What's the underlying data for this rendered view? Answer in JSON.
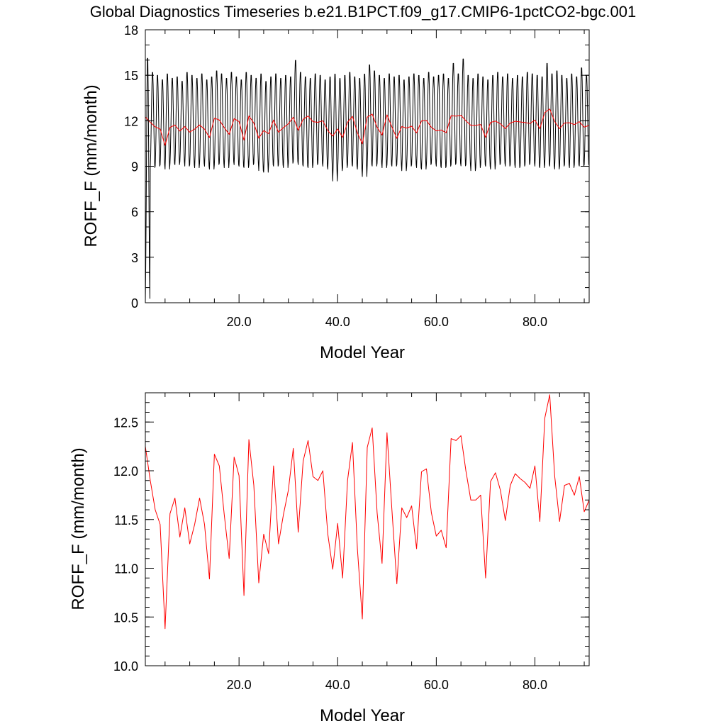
{
  "title": "Global Diagnostics Timeseries b.e21.B1PCT.f09_g17.CMIP6-1pctCO2-bgc.001",
  "colors": {
    "monthly": "#000000",
    "annual": "#ff0000",
    "axis": "#000000"
  },
  "chart_data": [
    {
      "type": "line",
      "xlabel": "Model Year",
      "ylabel": "ROFF_F (mm/month)",
      "xlim": [
        1,
        91
      ],
      "ylim": [
        0,
        18
      ],
      "xticks": [
        20,
        40,
        60,
        80
      ],
      "xtick_labels": [
        "20.0",
        "40.0",
        "60.0",
        "80.0"
      ],
      "yticks": [
        0,
        3,
        6,
        9,
        12,
        15,
        18
      ],
      "ytick_labels": [
        "0",
        "3",
        "6",
        "9",
        "12",
        "15",
        "18"
      ],
      "grid": false,
      "series": [
        {
          "key": "monthly",
          "color": "#000000",
          "start_year": 1,
          "samples_per_year": 12,
          "values_note": "monthly mean; seasonal cycle approx 9 to 15",
          "year_min": [
            0.0,
            8.8,
            8.9,
            9.0,
            8.7,
            9.1,
            9.0,
            9.2,
            8.9,
            9.0,
            8.8,
            9.1,
            8.9,
            8.7,
            9.0,
            9.1,
            8.8,
            9.2,
            9.0,
            8.9,
            8.8,
            9.0,
            9.1,
            8.6,
            8.5,
            9.0,
            8.9,
            9.0,
            8.8,
            9.1,
            9.2,
            9.0,
            8.9,
            8.8,
            9.0,
            9.1,
            8.9,
            8.7,
            7.9,
            8.6,
            8.8,
            9.0,
            8.9,
            8.7,
            8.2,
            9.0,
            8.9,
            9.1,
            8.8,
            9.0,
            8.9,
            9.0,
            8.6,
            8.9,
            9.0,
            8.8,
            8.7,
            9.0,
            9.1,
            8.9,
            8.8,
            8.9,
            9.0,
            9.1,
            8.9,
            9.0,
            8.6,
            8.8,
            9.0,
            8.9,
            8.7,
            9.0,
            9.1,
            8.9,
            9.0,
            8.8,
            8.9,
            9.0,
            9.1,
            8.9,
            8.8,
            9.0,
            8.9,
            8.7,
            8.9,
            9.0,
            8.8,
            9.0,
            8.9,
            9.0,
            9.1
          ],
          "year_max": [
            16.4,
            15.3,
            15.1,
            14.8,
            15.2,
            14.9,
            15.0,
            14.7,
            15.3,
            15.1,
            14.9,
            15.2,
            14.8,
            15.0,
            15.4,
            15.2,
            14.9,
            15.3,
            15.0,
            14.8,
            15.3,
            15.1,
            14.9,
            15.2,
            14.7,
            15.0,
            15.2,
            14.9,
            15.1,
            15.0,
            16.1,
            15.3,
            15.0,
            14.9,
            15.2,
            15.1,
            14.8,
            15.0,
            15.2,
            14.9,
            15.1,
            15.3,
            15.0,
            14.9,
            15.2,
            15.8,
            15.4,
            15.1,
            14.9,
            15.2,
            15.0,
            15.1,
            14.8,
            15.0,
            15.2,
            15.1,
            14.9,
            15.3,
            15.0,
            15.1,
            15.2,
            14.9,
            15.9,
            15.2,
            16.2,
            15.1,
            14.9,
            15.2,
            15.0,
            14.8,
            15.1,
            15.3,
            15.0,
            15.2,
            14.9,
            15.1,
            15.0,
            15.3,
            15.2,
            15.1,
            15.0,
            15.9,
            15.2,
            15.4,
            15.1,
            14.9,
            15.2,
            15.0,
            15.6,
            15.1,
            14.8
          ]
        },
        {
          "key": "annual",
          "color": "#ff0000",
          "x": [
            1,
            2,
            3,
            4,
            5,
            6,
            7,
            8,
            9,
            10,
            11,
            12,
            13,
            14,
            15,
            16,
            17,
            18,
            19,
            20,
            21,
            22,
            23,
            24,
            25,
            26,
            27,
            28,
            29,
            30,
            31,
            32,
            33,
            34,
            35,
            36,
            37,
            38,
            39,
            40,
            41,
            42,
            43,
            44,
            45,
            46,
            47,
            48,
            49,
            50,
            51,
            52,
            53,
            54,
            55,
            56,
            57,
            58,
            59,
            60,
            61,
            62,
            63,
            64,
            65,
            66,
            67,
            68,
            69,
            70,
            71,
            72,
            73,
            74,
            75,
            76,
            77,
            78,
            79,
            80,
            81,
            82,
            83,
            84,
            85,
            86,
            87,
            88,
            89,
            90,
            91
          ],
          "y": [
            12.25,
            11.9,
            11.6,
            11.45,
            10.38,
            11.56,
            11.72,
            11.32,
            11.62,
            11.25,
            11.45,
            11.72,
            11.45,
            10.89,
            12.17,
            12.05,
            11.55,
            11.1,
            12.14,
            11.95,
            10.72,
            12.32,
            11.85,
            10.85,
            11.35,
            11.15,
            12.05,
            11.25,
            11.55,
            11.8,
            12.23,
            11.37,
            12.1,
            12.31,
            11.94,
            11.9,
            12.0,
            11.35,
            10.99,
            11.46,
            10.9,
            11.9,
            12.29,
            11.2,
            10.48,
            12.24,
            12.44,
            11.57,
            11.05,
            12.39,
            11.6,
            10.84,
            11.62,
            11.52,
            11.64,
            11.2,
            11.99,
            12.02,
            11.57,
            11.33,
            11.39,
            11.21,
            12.33,
            12.31,
            12.36,
            12.0,
            11.7,
            11.7,
            11.75,
            10.9,
            11.89,
            11.98,
            11.8,
            11.49,
            11.85,
            11.97,
            11.92,
            11.88,
            11.82,
            12.05,
            11.48,
            12.54,
            12.78,
            11.95,
            11.48,
            11.85,
            11.87,
            11.75,
            11.94,
            11.58,
            11.7
          ]
        }
      ]
    },
    {
      "type": "line",
      "xlabel": "Model Year",
      "ylabel": "ROFF_F (mm/month)",
      "xlim": [
        1,
        91
      ],
      "ylim": [
        10.0,
        12.8
      ],
      "xticks": [
        20,
        40,
        60,
        80
      ],
      "xtick_labels": [
        "20.0",
        "40.0",
        "60.0",
        "80.0"
      ],
      "yticks": [
        10.0,
        10.5,
        11.0,
        11.5,
        12.0,
        12.5
      ],
      "ytick_labels": [
        "10.0",
        "10.5",
        "11.0",
        "11.5",
        "12.0",
        "12.5"
      ],
      "grid": false,
      "series": [
        {
          "key": "annual",
          "color": "#ff0000",
          "x": [
            1,
            2,
            3,
            4,
            5,
            6,
            7,
            8,
            9,
            10,
            11,
            12,
            13,
            14,
            15,
            16,
            17,
            18,
            19,
            20,
            21,
            22,
            23,
            24,
            25,
            26,
            27,
            28,
            29,
            30,
            31,
            32,
            33,
            34,
            35,
            36,
            37,
            38,
            39,
            40,
            41,
            42,
            43,
            44,
            45,
            46,
            47,
            48,
            49,
            50,
            51,
            52,
            53,
            54,
            55,
            56,
            57,
            58,
            59,
            60,
            61,
            62,
            63,
            64,
            65,
            66,
            67,
            68,
            69,
            70,
            71,
            72,
            73,
            74,
            75,
            76,
            77,
            78,
            79,
            80,
            81,
            82,
            83,
            84,
            85,
            86,
            87,
            88,
            89,
            90,
            91
          ],
          "y": [
            12.25,
            11.9,
            11.6,
            11.45,
            10.38,
            11.56,
            11.72,
            11.32,
            11.62,
            11.25,
            11.45,
            11.72,
            11.45,
            10.89,
            12.17,
            12.05,
            11.55,
            11.1,
            12.14,
            11.95,
            10.72,
            12.32,
            11.85,
            10.85,
            11.35,
            11.15,
            12.05,
            11.25,
            11.55,
            11.8,
            12.23,
            11.37,
            12.1,
            12.31,
            11.94,
            11.9,
            12.0,
            11.35,
            10.99,
            11.46,
            10.9,
            11.9,
            12.29,
            11.2,
            10.48,
            12.24,
            12.44,
            11.57,
            11.05,
            12.39,
            11.6,
            10.84,
            11.62,
            11.52,
            11.64,
            11.2,
            11.99,
            12.02,
            11.57,
            11.33,
            11.39,
            11.21,
            12.33,
            12.31,
            12.36,
            12.0,
            11.7,
            11.7,
            11.75,
            10.9,
            11.89,
            11.98,
            11.8,
            11.49,
            11.85,
            11.97,
            11.92,
            11.88,
            11.82,
            12.05,
            11.48,
            12.54,
            12.78,
            11.95,
            11.48,
            11.85,
            11.87,
            11.75,
            11.94,
            11.58,
            11.7
          ]
        }
      ]
    }
  ]
}
